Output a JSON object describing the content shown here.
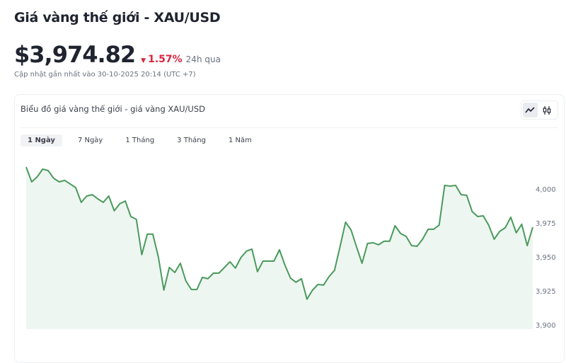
{
  "header": {
    "title": "Giá vàng thế giới - XAU/USD",
    "price": "$3,974.82",
    "change": "1.57%",
    "change_direction": "down",
    "change_period": "24h qua",
    "updated": "Cập nhật gần nhất vào 30-10-2025 20:14 (UTC +7)"
  },
  "card": {
    "title": "Biểu đồ giá vàng thế giới - giá vàng XAU/USD",
    "chart_types": [
      {
        "icon": "line-chart-icon",
        "active": true
      },
      {
        "icon": "candlestick-icon",
        "active": false
      }
    ],
    "ranges": [
      {
        "label": "1 Ngày",
        "active": true
      },
      {
        "label": "7 Ngày"
      },
      {
        "label": "1 Tháng"
      },
      {
        "label": "3 Tháng"
      },
      {
        "label": "1 Năm"
      }
    ]
  },
  "colors": {
    "line": "#4a9a5c",
    "fill": "#eef6f1",
    "down": "#d8263f"
  },
  "chart_data": {
    "type": "area",
    "title": "",
    "xlabel": "",
    "ylabel": "",
    "ylim": [
      3900,
      4010
    ],
    "yticks": [
      4000,
      3975,
      3950,
      3925,
      3900
    ],
    "ytick_labels": [
      "4,000",
      "3,975",
      "3,950",
      "3,925",
      "3,900"
    ],
    "y_axis_position": "right",
    "grid": false,
    "values": [
      4016.1,
      4005.2,
      4008.9,
      4014.6,
      4013.5,
      4007.8,
      4005.2,
      4006.3,
      4003.6,
      4001,
      3990.1,
      3994.8,
      3995.8,
      3992.7,
      3990.1,
      3994.8,
      3983.9,
      3989.1,
      3991.1,
      3979.7,
      3977.6,
      3951.6,
      3966.7,
      3966.7,
      3950,
      3925.5,
      3942.2,
      3938.5,
      3945.3,
      3932.3,
      3926,
      3926,
      3934.9,
      3933.9,
      3938,
      3938,
      3942.2,
      3946.4,
      3941.7,
      3949.5,
      3954.2,
      3955.7,
      3939.1,
      3946.9,
      3946.9,
      3946.9,
      3955.2,
      3943.8,
      3934.4,
      3931.3,
      3933.9,
      3918.8,
      3925.5,
      3929.7,
      3929.2,
      3935.4,
      3940.1,
      3957.5,
      3975.5,
      3969.8,
      3957.3,
      3945.3,
      3959.9,
      3960.4,
      3958.9,
      3961.5,
      3961.5,
      3972.9,
      3967.2,
      3965.1,
      3958.3,
      3957.8,
      3963,
      3970.3,
      3970.3,
      3973.4,
      4002.6,
      4002.1,
      4002.6,
      3995.8,
      3995.3,
      3983.3,
      3979.7,
      3980.2,
      3973.4,
      3963,
      3968.8,
      3971.4,
      3979.2,
      3967.7,
      3974,
      3958.3,
      3971.9
    ]
  }
}
